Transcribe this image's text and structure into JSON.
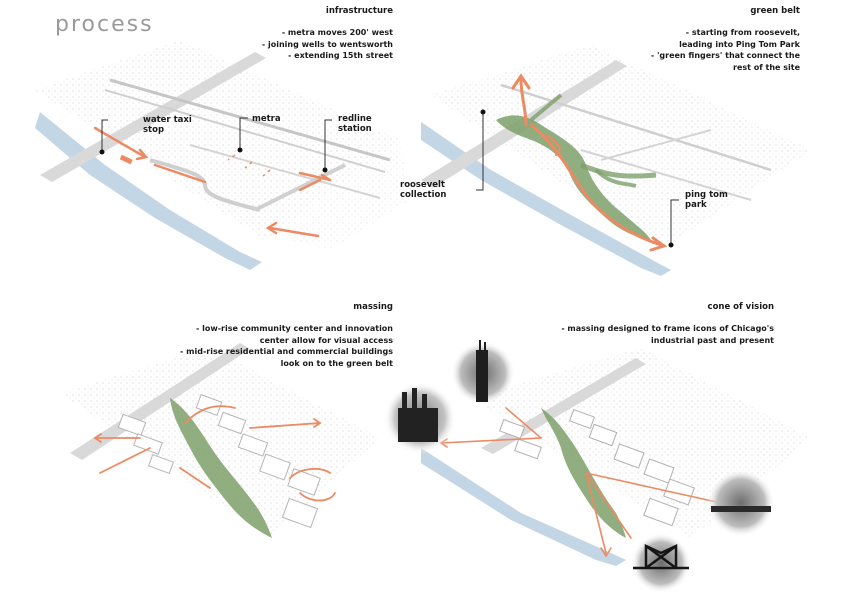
{
  "page": {
    "title": "process"
  },
  "panels": {
    "infrastructure": {
      "title": "infrastructure",
      "notes": [
        "- metra moves 200' west",
        "- joining wells to wentsworth",
        "- extending 15th street"
      ],
      "labels": {
        "water_taxi": [
          "water taxi",
          "stop"
        ],
        "metra": "metra",
        "redline": [
          "redline",
          "station"
        ]
      }
    },
    "green_belt": {
      "title": "green belt",
      "notes": [
        "- starting from roosevelt,",
        "leading into Ping Tom Park",
        "- 'green fingers' that connect the",
        "rest of the site"
      ],
      "labels": {
        "roosevelt": [
          "roosevelt",
          "collection"
        ],
        "ping_tom": [
          "ping tom",
          "park"
        ]
      }
    },
    "massing": {
      "title": "massing",
      "notes": [
        "- low-rise community center and innovation",
        "center allow for visual access",
        "- mid-rise residential and commercial buildings",
        "look on to the green belt"
      ]
    },
    "cone_of_vision": {
      "title": "cone of vision",
      "notes": [
        "- massing designed to frame icons of Chicago's",
        "industrial past and present"
      ]
    }
  },
  "colors": {
    "arrow": "#ec8a63",
    "green": "#7da06a",
    "river": "#b9cfe2",
    "title_gray": "#9a9a9a",
    "road": "#dcdcdc"
  }
}
